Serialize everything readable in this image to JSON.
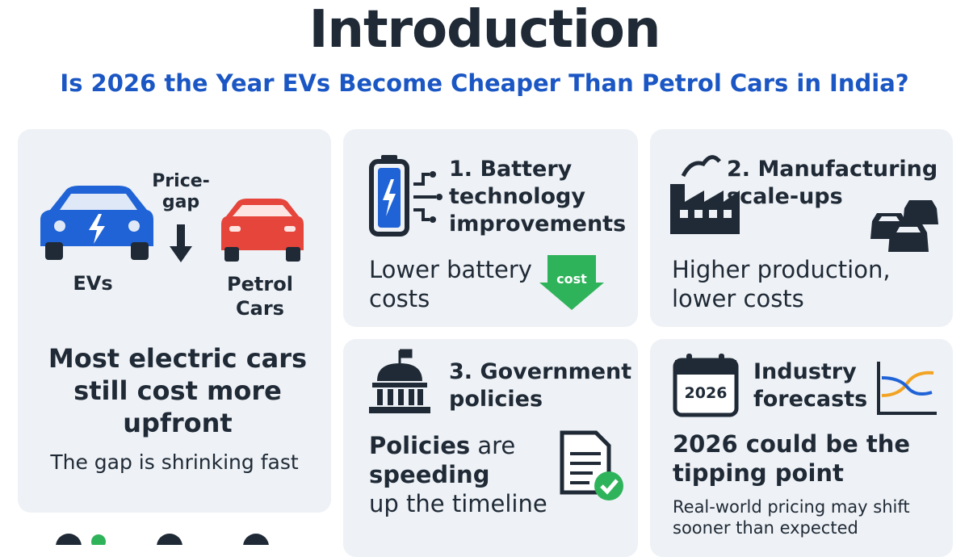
{
  "header": {
    "title": "Introduction",
    "subtitle": "Is 2026 the Year EVs Become Cheaper Than Petrol Cars in India?"
  },
  "comparison": {
    "gap_label": [
      "Price-",
      "gap"
    ],
    "ev_label": "EVs",
    "petrol_label": [
      "Petrol",
      "Cars"
    ],
    "heading": "Most electric cars still cost more upfront",
    "note": "The gap is shrinking fast"
  },
  "cards": [
    {
      "title": "1. Battery technology improvements",
      "body": "Lower battery costs",
      "icon_label": "cost"
    },
    {
      "title": "2. Manufacturing scale-ups",
      "body": "Higher production, lower costs"
    },
    {
      "title": "3. Government policies",
      "body": [
        "Policies",
        "are",
        "speeding",
        "up the timeline"
      ]
    },
    {
      "title": "Industry forecasts",
      "icon_label": "2026",
      "heading": "2026 could be the tipping point",
      "body": "Real-world pricing may shift sooner than expected"
    }
  ]
}
